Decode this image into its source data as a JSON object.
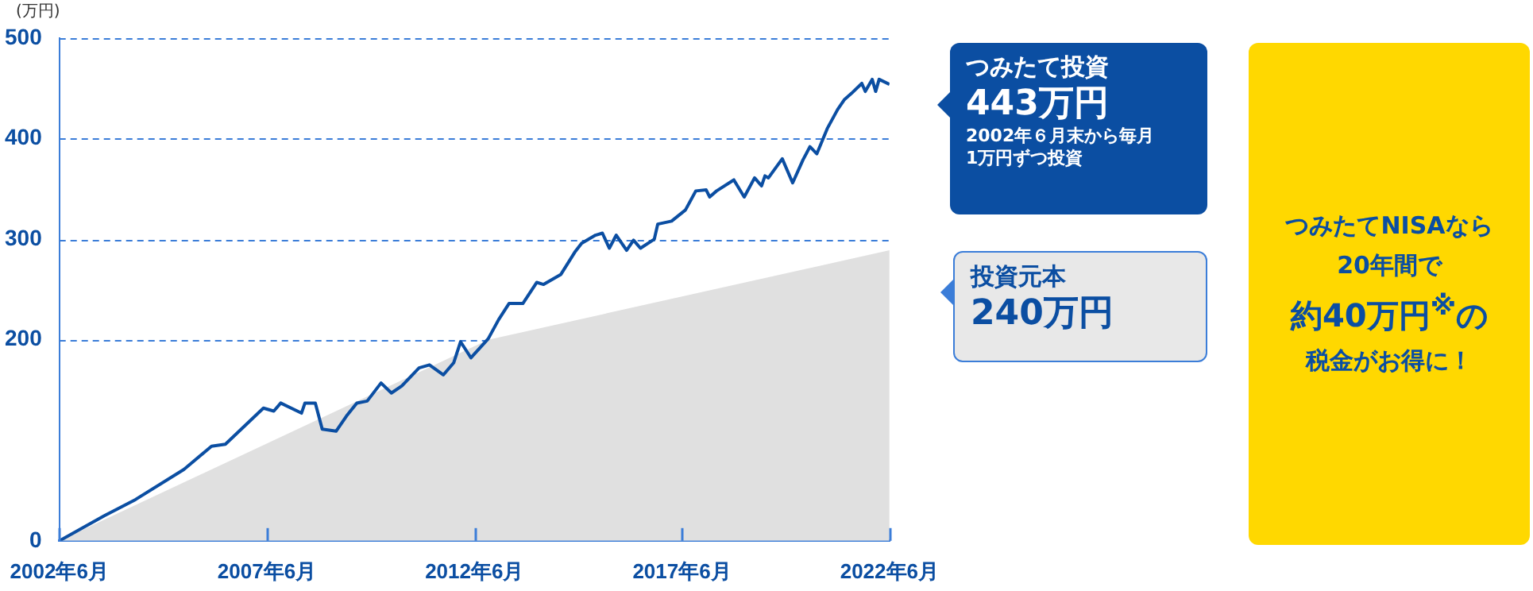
{
  "chart_data": {
    "type": "line",
    "ylabel": "(万円)",
    "xlim": [
      "2002-06",
      "2022-06"
    ],
    "xticks": [
      {
        "value": "2002-06",
        "label": "2002年6月"
      },
      {
        "value": "2007-06",
        "label": "2007年6月"
      },
      {
        "value": "2012-06",
        "label": "2012年6月"
      },
      {
        "value": "2017-06",
        "label": "2017年6月"
      },
      {
        "value": "2022-06",
        "label": "2022年6月"
      }
    ],
    "ylim": [
      0,
      500
    ],
    "yticks": [
      0,
      200,
      300,
      400,
      500
    ],
    "grid": "y",
    "series": [
      {
        "name": "投資元本",
        "type": "area",
        "color": "#e0e0e0",
        "x": [
          "2002-06",
          "2012-10",
          "2022-06"
        ],
        "values": [
          0,
          200,
          289
        ]
      },
      {
        "name": "つみたて投資",
        "type": "line",
        "color": "#0b4ea2",
        "x": [
          "2002-06",
          "2003-07",
          "2004-04",
          "2005-06",
          "2006-02",
          "2006-06",
          "2007-05",
          "2007-08",
          "2007-10",
          "2008-04",
          "2008-05",
          "2008-08",
          "2008-10",
          "2009-02",
          "2009-05",
          "2009-08",
          "2009-11",
          "2010-03",
          "2010-06",
          "2010-09",
          "2011-02",
          "2011-05",
          "2011-09",
          "2011-12",
          "2012-02",
          "2012-05",
          "2012-10",
          "2013-01",
          "2013-04",
          "2013-08",
          "2013-12",
          "2014-02",
          "2014-07",
          "2014-11",
          "2015-01",
          "2015-05",
          "2015-07",
          "2015-09",
          "2015-11",
          "2016-02",
          "2016-04",
          "2016-06",
          "2016-10",
          "2016-11",
          "2017-03",
          "2017-07",
          "2017-10",
          "2018-01",
          "2018-02",
          "2018-04",
          "2018-09",
          "2018-12",
          "2019-03",
          "2019-05",
          "2019-06",
          "2019-07",
          "2019-11",
          "2020-02",
          "2020-05",
          "2020-07",
          "2020-09",
          "2020-12",
          "2021-03",
          "2021-05",
          "2021-07",
          "2021-10",
          "2021-11",
          "2022-01",
          "2022-02",
          "2022-03",
          "2022-06"
        ],
        "values": [
          0,
          25,
          41,
          71,
          94,
          96,
          132,
          129,
          137,
          127,
          137,
          137,
          111,
          109,
          124,
          137,
          139,
          157,
          147,
          154,
          172,
          175,
          165,
          177,
          198,
          182,
          201,
          220,
          236,
          236,
          257,
          255,
          265,
          287,
          296,
          304,
          306,
          291,
          304,
          289,
          299,
          291,
          300,
          315,
          318,
          329,
          348,
          349,
          342,
          348,
          359,
          342,
          361,
          353,
          363,
          361,
          380,
          356,
          379,
          392,
          385,
          410,
          429,
          439,
          445,
          455,
          447,
          459,
          447,
          459,
          454
        ]
      }
    ],
    "annotations": [
      "443万円",
      "2002年６月末から毎月",
      "1万円ずつ投資",
      "240万円",
      "つみたてNISAなら",
      "20年間で",
      "約40万円$^{※}$の",
      "税金がお得に！"
    ]
  }
}
